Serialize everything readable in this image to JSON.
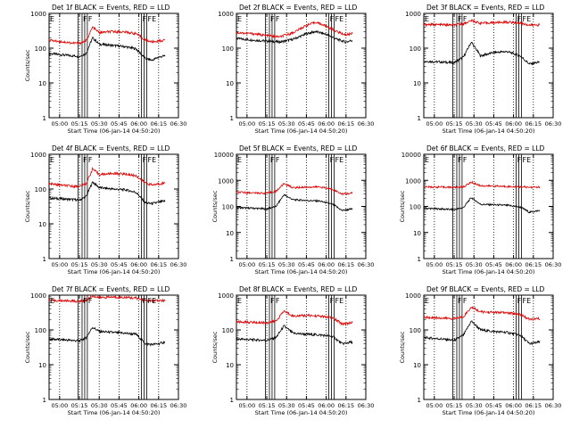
{
  "figure": {
    "black_label": "BLACK = Events",
    "red_label": "RED = LLD",
    "series_colors": {
      "events": "#000000",
      "lld": "#e00000"
    }
  },
  "chart_data": [
    {
      "type": "line",
      "title": "Det 1f BLACK = Events, RED = LLD",
      "ylabel": "Counts/sec",
      "xlabel": "Start Time (06-Jan-14 04:50:20)",
      "yscale": "log",
      "ylim": [
        1,
        1000
      ],
      "xlim": [
        "04:52",
        "06:30"
      ],
      "xticks": [
        "05:00",
        "05:15",
        "05:30",
        "05:45",
        "06:00",
        "06:15",
        "06:30"
      ],
      "yticks": [
        "1",
        "10",
        "100",
        "1000"
      ],
      "markers": [
        "E",
        "F",
        "F",
        "F",
        "FE"
      ],
      "series": [
        {
          "name": "Events",
          "x": [
            "04:52",
            "05:10",
            "05:15",
            "05:20",
            "05:25",
            "05:30",
            "05:40",
            "05:50",
            "05:58",
            "06:05",
            "06:10",
            "06:15",
            "06:20"
          ],
          "y": [
            70,
            60,
            58,
            70,
            200,
            130,
            120,
            110,
            95,
            50,
            45,
            55,
            60
          ]
        },
        {
          "name": "LLD",
          "x": [
            "04:52",
            "05:10",
            "05:15",
            "05:20",
            "05:25",
            "05:30",
            "05:40",
            "05:50",
            "05:58",
            "06:05",
            "06:10",
            "06:15",
            "06:20"
          ],
          "y": [
            170,
            140,
            140,
            160,
            400,
            280,
            300,
            290,
            260,
            170,
            150,
            160,
            170
          ]
        }
      ]
    },
    {
      "type": "line",
      "title": "Det 2f BLACK = Events, RED = LLD",
      "ylabel": "",
      "xlabel": "Start Time (06-Jan-14 04:50:20)",
      "yscale": "log",
      "ylim": [
        1,
        1000
      ],
      "xlim": [
        "04:52",
        "06:30"
      ],
      "xticks": [
        "05:00",
        "05:15",
        "05:30",
        "05:45",
        "06:00",
        "06:15",
        "06:30"
      ],
      "yticks": [
        "1",
        "10",
        "100",
        "1000"
      ],
      "markers": [
        "E",
        "F",
        "F",
        "F",
        "FE"
      ],
      "series": [
        {
          "name": "Events",
          "x": [
            "04:52",
            "05:05",
            "05:15",
            "05:25",
            "05:35",
            "05:45",
            "05:52",
            "06:00",
            "06:08",
            "06:15",
            "06:20"
          ],
          "y": [
            190,
            170,
            160,
            150,
            180,
            260,
            300,
            250,
            180,
            150,
            170
          ]
        },
        {
          "name": "LLD",
          "x": [
            "04:52",
            "05:05",
            "05:15",
            "05:25",
            "05:35",
            "05:45",
            "05:52",
            "06:00",
            "06:08",
            "06:15",
            "06:20"
          ],
          "y": [
            280,
            260,
            230,
            210,
            280,
            450,
            560,
            430,
            300,
            240,
            270
          ]
        }
      ]
    },
    {
      "type": "line",
      "title": "Det 3f BLACK = Events, RED = LLD",
      "ylabel": "",
      "xlabel": "Start Time (06-Jan-14 04:50:20)",
      "yscale": "log",
      "ylim": [
        1,
        1000
      ],
      "xlim": [
        "04:52",
        "06:30"
      ],
      "xticks": [
        "05:00",
        "05:15",
        "05:30",
        "05:45",
        "06:00",
        "06:15",
        "06:30"
      ],
      "yticks": [
        "1",
        "10",
        "100",
        "1000"
      ],
      "markers": [
        "E",
        "F",
        "F",
        "F",
        "FE"
      ],
      "series": [
        {
          "name": "Events",
          "x": [
            "04:52",
            "05:05",
            "05:15",
            "05:22",
            "05:28",
            "05:35",
            "05:45",
            "05:55",
            "06:05",
            "06:12",
            "06:20"
          ],
          "y": [
            42,
            40,
            38,
            55,
            150,
            60,
            75,
            80,
            60,
            35,
            40
          ]
        },
        {
          "name": "LLD",
          "x": [
            "04:52",
            "05:05",
            "05:15",
            "05:22",
            "05:28",
            "05:35",
            "05:45",
            "05:55",
            "06:05",
            "06:12",
            "06:20"
          ],
          "y": [
            480,
            470,
            460,
            500,
            620,
            520,
            540,
            560,
            530,
            460,
            470
          ]
        }
      ]
    },
    {
      "type": "line",
      "title": "Det 4f BLACK = Events, RED = LLD",
      "ylabel": "Counts/sec",
      "xlabel": "Start Time (06-Jan-14 04:50:20)",
      "yscale": "log",
      "ylim": [
        1,
        1000
      ],
      "xlim": [
        "04:52",
        "06:30"
      ],
      "xticks": [
        "05:00",
        "05:15",
        "05:30",
        "05:45",
        "06:00",
        "06:15",
        "06:30"
      ],
      "yticks": [
        "1",
        "10",
        "100",
        "1000"
      ],
      "markers": [
        "E",
        "F",
        "F",
        "F",
        "FE"
      ],
      "series": [
        {
          "name": "Events",
          "x": [
            "04:52",
            "05:10",
            "05:15",
            "05:20",
            "05:25",
            "05:30",
            "05:40",
            "05:50",
            "05:58",
            "06:05",
            "06:10",
            "06:15",
            "06:20"
          ],
          "y": [
            55,
            50,
            48,
            60,
            160,
            110,
            100,
            95,
            80,
            40,
            38,
            42,
            45
          ]
        },
        {
          "name": "LLD",
          "x": [
            "04:52",
            "05:10",
            "05:15",
            "05:20",
            "05:25",
            "05:30",
            "05:40",
            "05:50",
            "05:58",
            "06:05",
            "06:10",
            "06:15",
            "06:20"
          ],
          "y": [
            140,
            120,
            120,
            140,
            380,
            260,
            280,
            270,
            240,
            150,
            130,
            140,
            150
          ]
        }
      ]
    },
    {
      "type": "line",
      "title": "Det 5f BLACK = Events, RED = LLD",
      "ylabel": "Counts/sec",
      "xlabel": "Start Time (06-Jan-14 04:50:20)",
      "yscale": "log",
      "ylim": [
        1,
        10000
      ],
      "xlim": [
        "04:52",
        "06:30"
      ],
      "xticks": [
        "05:00",
        "05:15",
        "05:30",
        "05:45",
        "06:00",
        "06:15",
        "06:30"
      ],
      "yticks": [
        "1",
        "10",
        "100",
        "1000",
        "10000"
      ],
      "markers": [
        "E",
        "F",
        "F",
        "F",
        "FE"
      ],
      "series": [
        {
          "name": "Events",
          "x": [
            "04:52",
            "05:05",
            "05:15",
            "05:22",
            "05:28",
            "05:35",
            "05:45",
            "05:55",
            "06:05",
            "06:12",
            "06:20"
          ],
          "y": [
            90,
            85,
            80,
            100,
            280,
            180,
            170,
            160,
            120,
            70,
            80
          ]
        },
        {
          "name": "LLD",
          "x": [
            "04:52",
            "05:05",
            "05:15",
            "05:22",
            "05:28",
            "05:35",
            "05:45",
            "05:55",
            "06:05",
            "06:12",
            "06:20"
          ],
          "y": [
            350,
            330,
            320,
            380,
            750,
            520,
            550,
            560,
            450,
            300,
            320
          ]
        }
      ]
    },
    {
      "type": "line",
      "title": "Det 6f BLACK = Events, RED = LLD",
      "ylabel": "Counts/sec",
      "xlabel": "Start Time (06-Jan-14 04:50:20)",
      "yscale": "log",
      "ylim": [
        1,
        10000
      ],
      "xlim": [
        "04:52",
        "06:30"
      ],
      "xticks": [
        "05:00",
        "05:15",
        "05:30",
        "05:45",
        "06:00",
        "06:15",
        "06:30"
      ],
      "yticks": [
        "1",
        "10",
        "100",
        "1000",
        "10000"
      ],
      "markers": [
        "E",
        "F",
        "F",
        "F",
        "FE"
      ],
      "series": [
        {
          "name": "Events",
          "x": [
            "04:52",
            "05:05",
            "05:15",
            "05:22",
            "05:28",
            "05:35",
            "05:45",
            "05:55",
            "06:05",
            "06:12",
            "06:20"
          ],
          "y": [
            85,
            80,
            75,
            90,
            220,
            120,
            115,
            110,
            95,
            60,
            70
          ]
        },
        {
          "name": "LLD",
          "x": [
            "04:52",
            "05:05",
            "05:15",
            "05:22",
            "05:28",
            "05:35",
            "05:45",
            "05:55",
            "06:05",
            "06:12",
            "06:20"
          ],
          "y": [
            560,
            550,
            540,
            560,
            850,
            620,
            600,
            580,
            560,
            540,
            550
          ]
        }
      ]
    },
    {
      "type": "line",
      "title": "Det 7f BLACK = Events, RED = LLD",
      "ylabel": "Counts/sec",
      "xlabel": "Start Time (06-Jan-14 04:50:20)",
      "yscale": "log",
      "ylim": [
        1,
        1000
      ],
      "xlim": [
        "04:52",
        "06:30"
      ],
      "xticks": [
        "05:00",
        "05:15",
        "05:30",
        "05:45",
        "06:00",
        "06:15",
        "06:30"
      ],
      "yticks": [
        "1",
        "10",
        "100",
        "1000"
      ],
      "markers": [
        "E",
        "F",
        "F",
        "F",
        "FE"
      ],
      "series": [
        {
          "name": "Events",
          "x": [
            "04:52",
            "05:10",
            "05:15",
            "05:20",
            "05:25",
            "05:30",
            "05:40",
            "05:50",
            "05:58",
            "06:05",
            "06:10",
            "06:15",
            "06:20"
          ],
          "y": [
            55,
            50,
            48,
            60,
            120,
            90,
            85,
            80,
            75,
            40,
            38,
            40,
            45
          ]
        },
        {
          "name": "LLD",
          "x": [
            "04:52",
            "05:10",
            "05:15",
            "05:20",
            "05:25",
            "05:30",
            "05:40",
            "05:50",
            "05:58",
            "06:05",
            "06:10",
            "06:15",
            "06:20"
          ],
          "y": [
            700,
            680,
            660,
            700,
            950,
            850,
            880,
            860,
            820,
            700,
            680,
            690,
            700
          ]
        }
      ]
    },
    {
      "type": "line",
      "title": "Det 8f BLACK = Events, RED = LLD",
      "ylabel": "Counts/sec",
      "xlabel": "Start Time (06-Jan-14 04:50:20)",
      "yscale": "log",
      "ylim": [
        1,
        1000
      ],
      "xlim": [
        "04:52",
        "06:30"
      ],
      "xticks": [
        "05:00",
        "05:15",
        "05:30",
        "05:45",
        "06:00",
        "06:15",
        "06:30"
      ],
      "yticks": [
        "1",
        "10",
        "100",
        "1000"
      ],
      "markers": [
        "E",
        "F",
        "F",
        "F",
        "FE"
      ],
      "series": [
        {
          "name": "Events",
          "x": [
            "04:52",
            "05:05",
            "05:15",
            "05:22",
            "05:28",
            "05:35",
            "05:45",
            "05:55",
            "06:05",
            "06:12",
            "06:20"
          ],
          "y": [
            55,
            52,
            50,
            60,
            130,
            80,
            75,
            72,
            65,
            40,
            45
          ]
        },
        {
          "name": "LLD",
          "x": [
            "04:52",
            "05:05",
            "05:15",
            "05:22",
            "05:28",
            "05:35",
            "05:45",
            "05:55",
            "06:05",
            "06:12",
            "06:20"
          ],
          "y": [
            170,
            165,
            160,
            180,
            350,
            250,
            260,
            250,
            220,
            150,
            160
          ]
        }
      ]
    },
    {
      "type": "line",
      "title": "Det 9f BLACK = Events, RED = LLD",
      "ylabel": "Counts/sec",
      "xlabel": "Start Time (06-Jan-14 04:50:20)",
      "yscale": "log",
      "ylim": [
        1,
        1000
      ],
      "xlim": [
        "04:52",
        "06:30"
      ],
      "xticks": [
        "05:00",
        "05:15",
        "05:30",
        "05:45",
        "06:00",
        "06:15",
        "06:30"
      ],
      "yticks": [
        "1",
        "10",
        "100",
        "1000"
      ],
      "markers": [
        "E",
        "F",
        "F",
        "F",
        "FE"
      ],
      "series": [
        {
          "name": "Events",
          "x": [
            "04:52",
            "05:05",
            "05:15",
            "05:22",
            "05:28",
            "05:35",
            "05:45",
            "05:55",
            "06:05",
            "06:12",
            "06:20"
          ],
          "y": [
            60,
            55,
            50,
            70,
            180,
            100,
            90,
            85,
            70,
            40,
            45
          ]
        },
        {
          "name": "LLD",
          "x": [
            "04:52",
            "05:05",
            "05:15",
            "05:22",
            "05:28",
            "05:35",
            "05:45",
            "05:55",
            "06:05",
            "06:12",
            "06:20"
          ],
          "y": [
            230,
            220,
            210,
            240,
            450,
            330,
            320,
            310,
            280,
            200,
            210
          ]
        }
      ]
    }
  ]
}
